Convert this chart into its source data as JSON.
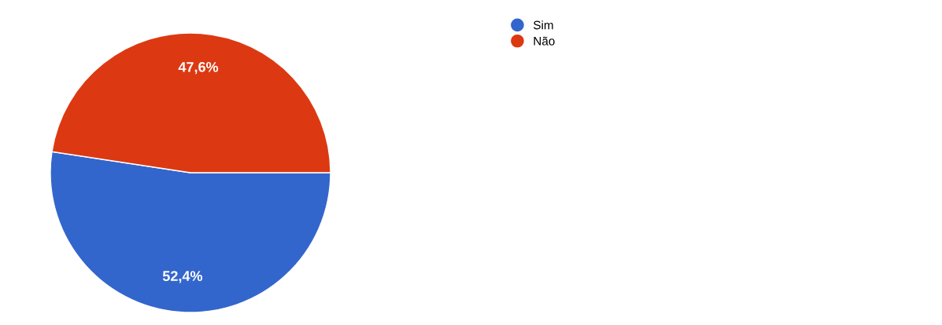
{
  "chart_data": {
    "type": "pie",
    "categories": [
      "Sim",
      "Não"
    ],
    "values": [
      52.4,
      47.6
    ],
    "colors": [
      "#3366cc",
      "#dc3912"
    ],
    "value_labels": [
      "52,4%",
      "47,6%"
    ],
    "legend": "top right"
  }
}
